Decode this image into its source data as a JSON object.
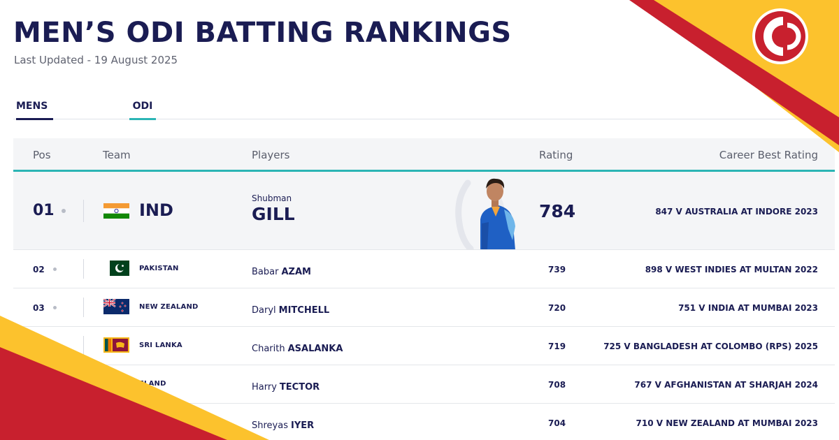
{
  "header": {
    "title": "MEN’S ODI BATTING RANKINGS",
    "last_updated": "Last Updated - 19 August 2025"
  },
  "tabs": [
    {
      "label": "MENS",
      "active": true
    },
    {
      "label": "ODI",
      "active": true
    }
  ],
  "table": {
    "columns": {
      "pos": "Pos",
      "team": "Team",
      "players": "Players",
      "rating": "Rating",
      "career_best": "Career Best Rating"
    },
    "top": {
      "pos": "01",
      "team": "IND",
      "first_name": "Shubman",
      "last_name": "GILL",
      "rating": "784",
      "career_best": "847 V AUSTRALIA AT INDORE 2023"
    },
    "rows": [
      {
        "pos": "02",
        "team": "PAKISTAN",
        "first_name": "Babar",
        "last_name": "AZAM",
        "rating": "739",
        "career_best": "898 V WEST INDIES AT MULTAN 2022"
      },
      {
        "pos": "03",
        "team": "NEW ZEALAND",
        "first_name": "Daryl",
        "last_name": "MITCHELL",
        "rating": "720",
        "career_best": "751 V INDIA AT MUMBAI 2023"
      },
      {
        "pos": "",
        "team": "SRI LANKA",
        "first_name": "Charith",
        "last_name": "ASALANKA",
        "rating": "719",
        "career_best": "725 V BANGLADESH AT COLOMBO (RPS) 2025"
      },
      {
        "pos": "",
        "team": "ELAND",
        "first_name": "Harry",
        "last_name": "TECTOR",
        "rating": "708",
        "career_best": "767 V AFGHANISTAN AT SHARJAH 2024"
      },
      {
        "pos": "",
        "team": "",
        "first_name": "Shreyas",
        "last_name": "IYER",
        "rating": "704",
        "career_best": "710 V NEW ZEALAND AT MUMBAI 2023"
      }
    ]
  },
  "colors": {
    "navy": "#1a1c53",
    "teal": "#2bb5b5",
    "brand_red": "#c8202e",
    "brand_yellow": "#fcc22d"
  },
  "icons": {
    "logo": "brand-logo-icon",
    "rank_dot": "rank-dot-icon",
    "flags": [
      "india-flag-icon",
      "pakistan-flag-icon",
      "new-zealand-flag-icon",
      "sri-lanka-flag-icon"
    ]
  }
}
